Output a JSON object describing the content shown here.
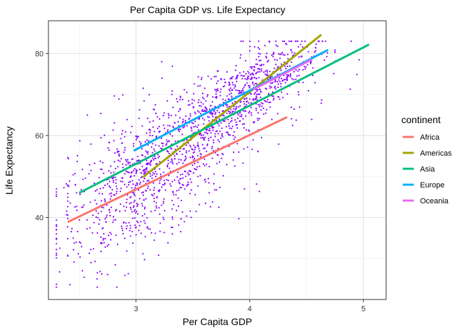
{
  "chart_data": {
    "type": "scatter",
    "title": "Per Capita GDP vs. Life Expectancy",
    "xlabel": "Per Capita GDP",
    "ylabel": "Life Expectancy",
    "xlim": [
      2.23,
      5.2
    ],
    "ylim": [
      20,
      88
    ],
    "x_ticks": [
      3,
      4,
      5
    ],
    "y_ticks": [
      40,
      60,
      80
    ],
    "grid": true,
    "legend": {
      "title": "continent",
      "placement": "right",
      "entries": [
        {
          "label": "Africa",
          "color": "#F8766D"
        },
        {
          "label": "Americas",
          "color": "#A3A500"
        },
        {
          "label": "Asia",
          "color": "#00BF7D"
        },
        {
          "label": "Europe",
          "color": "#00B0F6"
        },
        {
          "label": "Oceania",
          "color": "#E76BF3"
        }
      ]
    },
    "point_color": "#8B00FF",
    "series": [
      {
        "name": "Africa",
        "color": "#F8766D",
        "x": [
          2.4,
          4.33
        ],
        "y": [
          38.9,
          64.5
        ]
      },
      {
        "name": "Americas",
        "color": "#A3A500",
        "x": [
          3.06,
          4.63
        ],
        "y": [
          49.8,
          84.6
        ]
      },
      {
        "name": "Asia",
        "color": "#00BF7D",
        "x": [
          2.5,
          5.05
        ],
        "y": [
          46.0,
          82.2
        ]
      },
      {
        "name": "Europe",
        "color": "#00B0F6",
        "x": [
          2.98,
          4.69
        ],
        "y": [
          56.3,
          80.9
        ]
      },
      {
        "name": "Oceania",
        "color": "#E76BF3",
        "x": [
          4.03,
          4.55
        ],
        "y": [
          71.2,
          78.6
        ]
      }
    ]
  }
}
